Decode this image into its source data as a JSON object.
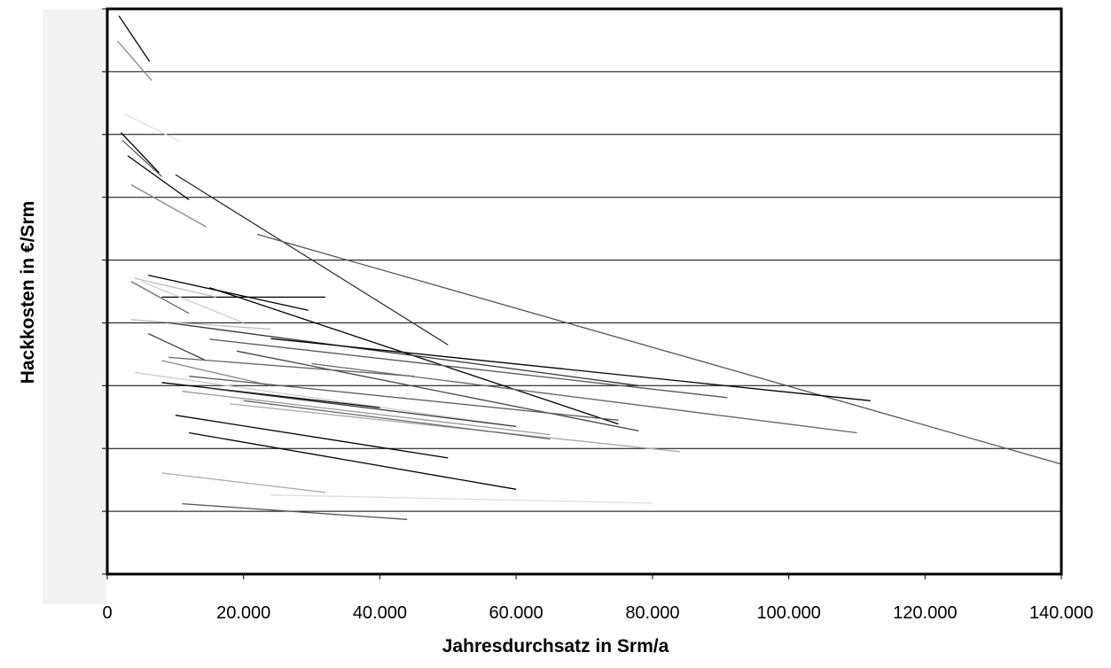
{
  "chart_data": {
    "type": "line",
    "title": "",
    "xlabel": "Jahresdurchsatz in Srm/a",
    "ylabel": "Hackkosten in €/Srm",
    "xlim": [
      0,
      140000
    ],
    "ylim": [
      0,
      9
    ],
    "x_ticks": [
      0,
      20000,
      40000,
      60000,
      80000,
      100000,
      120000,
      140000
    ],
    "x_tick_labels": [
      "0",
      "20.000",
      "40.000",
      "60.000",
      "80.000",
      "100.000",
      "120.000",
      "140.000"
    ],
    "y_tick_labels": [],
    "grid": "horizontal",
    "legend": "none",
    "series": [
      {
        "x": [
          1700,
          6200
        ],
        "y": [
          8.89,
          8.16
        ],
        "color": "#000000"
      },
      {
        "x": [
          1500,
          6500
        ],
        "y": [
          8.49,
          7.86
        ],
        "color": "#888888"
      },
      {
        "x": [
          2500,
          10600
        ],
        "y": [
          7.33,
          6.89
        ],
        "color": "#dddddd"
      },
      {
        "x": [
          2000,
          7600
        ],
        "y": [
          7.03,
          6.39
        ],
        "color": "#000000"
      },
      {
        "x": [
          2200,
          8000
        ],
        "y": [
          6.91,
          6.33
        ],
        "color": "#555555"
      },
      {
        "x": [
          3000,
          12000
        ],
        "y": [
          6.66,
          5.96
        ],
        "color": "#000000"
      },
      {
        "x": [
          3500,
          14500
        ],
        "y": [
          6.2,
          5.53
        ],
        "color": "#888888"
      },
      {
        "x": [
          10000,
          50000
        ],
        "y": [
          6.36,
          3.65
        ],
        "color": "#333333"
      },
      {
        "x": [
          22000,
          140000
        ],
        "y": [
          5.41,
          1.75
        ],
        "color": "#555555"
      },
      {
        "x": [
          6000,
          29500
        ],
        "y": [
          4.76,
          4.2
        ],
        "color": "#000000"
      },
      {
        "x": [
          8000,
          32000
        ],
        "y": [
          4.41,
          4.41
        ],
        "color": "#000000"
      },
      {
        "x": [
          3500,
          12000
        ],
        "y": [
          4.66,
          4.15
        ],
        "color": "#666666"
      },
      {
        "x": [
          4000,
          16000
        ],
        "y": [
          4.71,
          4.41
        ],
        "color": "#bbbbbb"
      },
      {
        "x": [
          5000,
          20000
        ],
        "y": [
          4.66,
          4.0
        ],
        "color": "#cccccc"
      },
      {
        "x": [
          15000,
          75000
        ],
        "y": [
          4.56,
          2.39
        ],
        "color": "#000000"
      },
      {
        "x": [
          3500,
          24000
        ],
        "y": [
          4.05,
          3.9
        ],
        "color": "#bbbbbb"
      },
      {
        "x": [
          6000,
          14500
        ],
        "y": [
          3.83,
          3.4
        ],
        "color": "#444444"
      },
      {
        "x": [
          9000,
          78000
        ],
        "y": [
          4.0,
          3.0
        ],
        "color": "#333333"
      },
      {
        "x": [
          24000,
          112000
        ],
        "y": [
          3.75,
          2.76
        ],
        "color": "#000000"
      },
      {
        "x": [
          15000,
          91000
        ],
        "y": [
          3.74,
          2.81
        ],
        "color": "#555555"
      },
      {
        "x": [
          19000,
          78000
        ],
        "y": [
          3.55,
          2.28
        ],
        "color": "#444444"
      },
      {
        "x": [
          9000,
          45000
        ],
        "y": [
          3.45,
          3.15
        ],
        "color": "#666666"
      },
      {
        "x": [
          30000,
          110000
        ],
        "y": [
          3.35,
          2.25
        ],
        "color": "#666666"
      },
      {
        "x": [
          8000,
          24000
        ],
        "y": [
          3.4,
          3.0
        ],
        "color": "#888888"
      },
      {
        "x": [
          4000,
          60000
        ],
        "y": [
          3.21,
          2.35
        ],
        "color": "#cccccc"
      },
      {
        "x": [
          12000,
          75000
        ],
        "y": [
          3.15,
          2.45
        ],
        "color": "#555555"
      },
      {
        "x": [
          8000,
          40000
        ],
        "y": [
          3.05,
          2.65
        ],
        "color": "#000000"
      },
      {
        "x": [
          11000,
          65000
        ],
        "y": [
          2.91,
          2.22
        ],
        "color": "#999999"
      },
      {
        "x": [
          15000,
          60000
        ],
        "y": [
          2.96,
          2.35
        ],
        "color": "#333333"
      },
      {
        "x": [
          18000,
          84000
        ],
        "y": [
          2.71,
          1.95
        ],
        "color": "#aaaaaa"
      },
      {
        "x": [
          20000,
          65000
        ],
        "y": [
          2.76,
          2.15
        ],
        "color": "#666666"
      },
      {
        "x": [
          10000,
          50000
        ],
        "y": [
          2.53,
          1.85
        ],
        "color": "#000000"
      },
      {
        "x": [
          12000,
          60000
        ],
        "y": [
          2.25,
          1.35
        ],
        "color": "#000000"
      },
      {
        "x": [
          8000,
          32000
        ],
        "y": [
          1.61,
          1.3
        ],
        "color": "#aaaaaa"
      },
      {
        "x": [
          24000,
          80000
        ],
        "y": [
          1.26,
          1.13
        ],
        "color": "#dddddd"
      },
      {
        "x": [
          11000,
          44000
        ],
        "y": [
          1.12,
          0.87
        ],
        "color": "#555555"
      }
    ]
  }
}
